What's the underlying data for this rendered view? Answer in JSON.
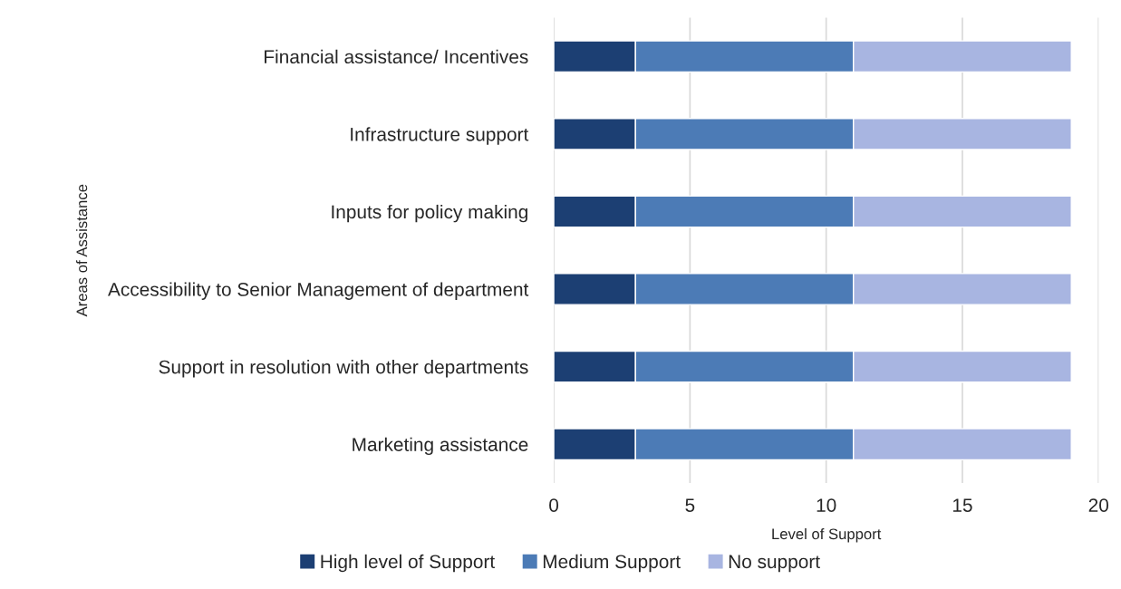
{
  "chart_data": {
    "type": "bar",
    "orientation": "horizontal",
    "stacked": true,
    "xlabel": "Level of Support",
    "ylabel": "Areas of Assistance",
    "categories": [
      "Financial assistance/ Incentives",
      "Infrastructure support",
      "Inputs for policy making",
      "Accessibility to Senior Management of department",
      "Support in resolution with other departments",
      "Marketing assistance"
    ],
    "series": [
      {
        "name": "High level of Support",
        "color": "#1c3f73",
        "values": [
          3,
          3,
          3,
          3,
          3,
          3
        ]
      },
      {
        "name": "Medium Support",
        "color": "#4c7bb6",
        "values": [
          8,
          8,
          8,
          8,
          8,
          8
        ]
      },
      {
        "name": "No support",
        "color": "#a8b5e1",
        "values": [
          8,
          8,
          8,
          8,
          8,
          8
        ]
      }
    ],
    "xlim": [
      0,
      20
    ],
    "xticks": [
      0,
      5,
      10,
      15,
      20
    ],
    "grid": "x",
    "legend": "bottom"
  }
}
